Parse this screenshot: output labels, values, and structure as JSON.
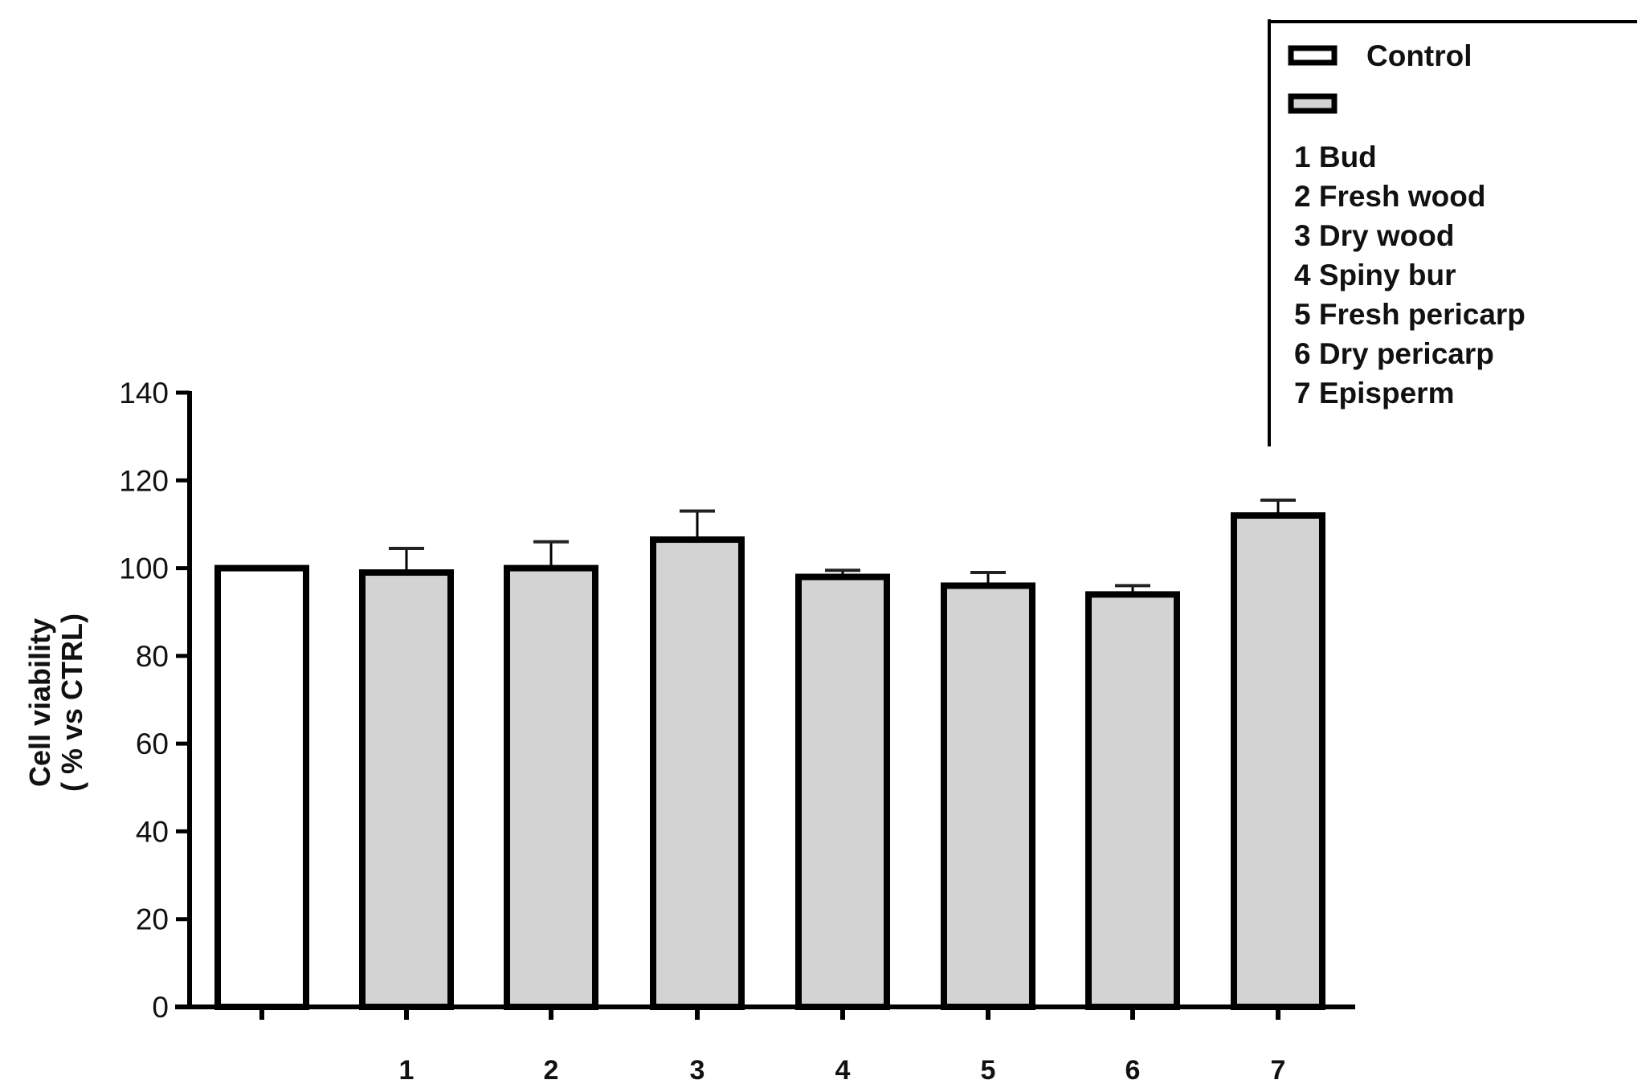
{
  "chart_data": {
    "type": "bar",
    "categories": [
      "",
      "1",
      "2",
      "3",
      "4",
      "5",
      "6",
      "7"
    ],
    "values": [
      100,
      99,
      100,
      106.5,
      98,
      96,
      94,
      112
    ],
    "error_upper": [
      null,
      104.5,
      106,
      113,
      99.5,
      99,
      96,
      115.5
    ],
    "bar_colors": [
      "#ffffff",
      "#d3d3d3",
      "#d3d3d3",
      "#d3d3d3",
      "#d3d3d3",
      "#d3d3d3",
      "#d3d3d3",
      "#d3d3d3"
    ],
    "title": "",
    "xlabel": "",
    "ylabel": [
      "Cell viability",
      "( % vs CTRL)"
    ],
    "ylim": [
      0,
      140
    ],
    "yticks": [
      0,
      20,
      40,
      60,
      80,
      100,
      120,
      140
    ],
    "grid": false,
    "legend_position": "top-right",
    "legend": {
      "entries": [
        {
          "label": "Control",
          "color": "#ffffff"
        },
        {
          "label": "",
          "color": "#d3d3d3"
        }
      ],
      "notes": [
        "1 Bud",
        "2 Fresh wood",
        "3 Dry wood",
        "4 Spiny bur",
        "5 Fresh pericarp",
        "6 Dry pericarp",
        "7 Episperm"
      ]
    }
  }
}
